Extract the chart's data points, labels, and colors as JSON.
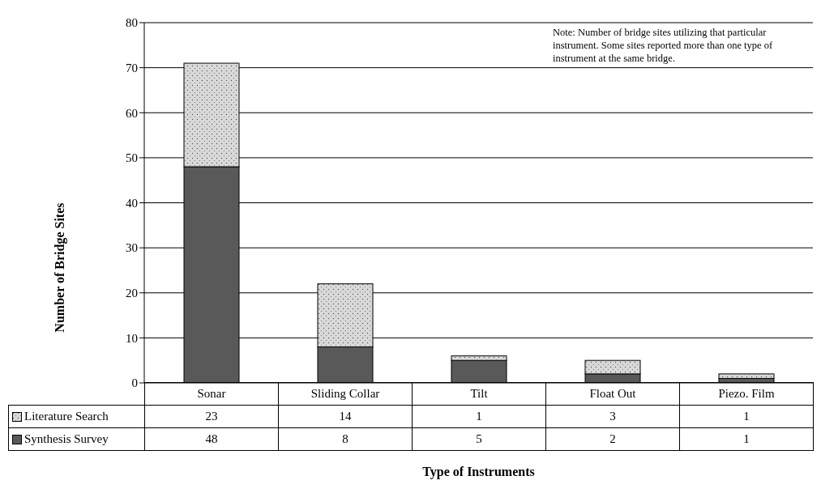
{
  "chart_data": {
    "type": "bar",
    "stacked": true,
    "categories": [
      "Sonar",
      "Sliding Collar",
      "Tilt",
      "Float Out",
      "Piezo. Film"
    ],
    "series": [
      {
        "name": "Synthesis Survey",
        "color": "#595959",
        "values": [
          48,
          8,
          5,
          2,
          1
        ]
      },
      {
        "name": "Literature Search",
        "color": "#d9d9d9",
        "values": [
          23,
          14,
          1,
          3,
          1
        ]
      }
    ],
    "ylim": [
      0,
      80
    ],
    "yticks": [
      0,
      10,
      20,
      30,
      40,
      50,
      60,
      70,
      80
    ],
    "ylabel": "Number of Bridge Sites",
    "xlabel": "Type of Instruments",
    "grid": "y",
    "legend": "bottom left",
    "data_labels": true,
    "annotations": [
      "Note: Number of bridge sites utilizing that particular instrument. Some sites reported more than one type of instrument at the same bridge."
    ]
  }
}
